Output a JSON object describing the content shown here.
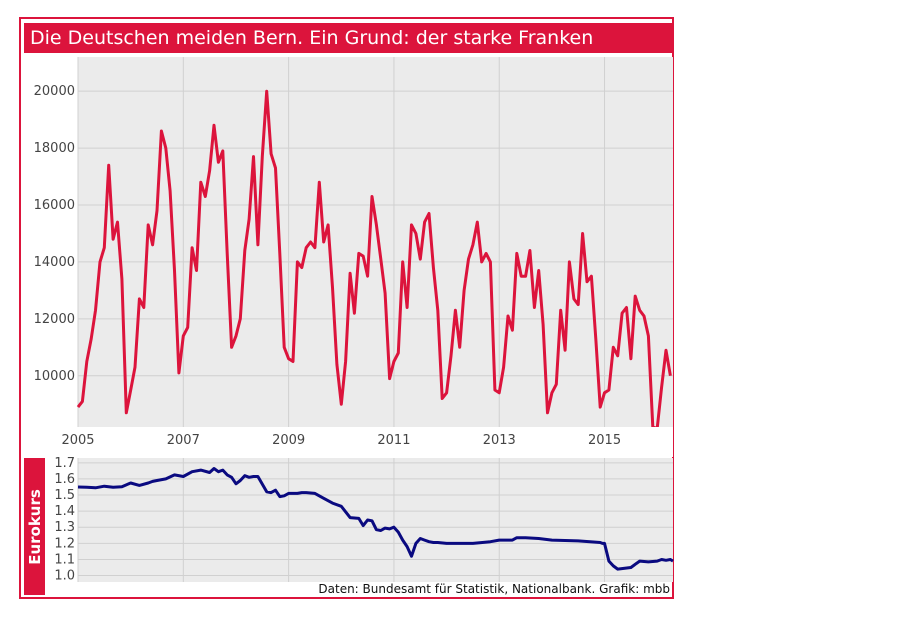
{
  "title": "Die Deutschen meiden Bern. Ein Grund: der starke Franken",
  "source": "Daten: Bundesamt für Statistik, Nationalbank. Grafik: mbb",
  "colors": {
    "accent": "#dc143c",
    "line_top": "#dc143c",
    "line_bottom": "#0a0a80",
    "plot_bg": "#ebebeb",
    "grid": "#d0d0d0"
  },
  "chart_data": [
    {
      "type": "line",
      "title": "",
      "xlabel": "",
      "ylabel": "",
      "xlim": [
        2005.0,
        2016.3
      ],
      "ylim": [
        8200,
        21200
      ],
      "grid": true,
      "x_ticks": [
        2005,
        2007,
        2009,
        2011,
        2013,
        2015
      ],
      "x_tick_labels": [
        "2005",
        "2007",
        "2009",
        "2011",
        "2013",
        "2015"
      ],
      "y_ticks": [
        10000,
        12000,
        14000,
        16000,
        18000,
        20000
      ],
      "y_tick_labels": [
        "10000",
        "12000",
        "14000",
        "16000",
        "18000",
        "20000"
      ],
      "series": [
        {
          "name": "",
          "x": [
            2005.0,
            2005.083,
            2005.167,
            2005.25,
            2005.333,
            2005.417,
            2005.5,
            2005.583,
            2005.667,
            2005.75,
            2005.833,
            2005.917,
            2006.0,
            2006.083,
            2006.167,
            2006.25,
            2006.333,
            2006.417,
            2006.5,
            2006.583,
            2006.667,
            2006.75,
            2006.833,
            2006.917,
            2007.0,
            2007.083,
            2007.167,
            2007.25,
            2007.333,
            2007.417,
            2007.5,
            2007.583,
            2007.667,
            2007.75,
            2007.833,
            2007.917,
            2008.0,
            2008.083,
            2008.167,
            2008.25,
            2008.333,
            2008.417,
            2008.5,
            2008.583,
            2008.667,
            2008.75,
            2008.833,
            2008.917,
            2009.0,
            2009.083,
            2009.167,
            2009.25,
            2009.333,
            2009.417,
            2009.5,
            2009.583,
            2009.667,
            2009.75,
            2009.833,
            2009.917,
            2010.0,
            2010.083,
            2010.167,
            2010.25,
            2010.333,
            2010.417,
            2010.5,
            2010.583,
            2010.667,
            2010.75,
            2010.833,
            2010.917,
            2011.0,
            2011.083,
            2011.167,
            2011.25,
            2011.333,
            2011.417,
            2011.5,
            2011.583,
            2011.667,
            2011.75,
            2011.833,
            2011.917,
            2012.0,
            2012.083,
            2012.167,
            2012.25,
            2012.333,
            2012.417,
            2012.5,
            2012.583,
            2012.667,
            2012.75,
            2012.833,
            2012.917,
            2013.0,
            2013.083,
            2013.167,
            2013.25,
            2013.333,
            2013.417,
            2013.5,
            2013.583,
            2013.667,
            2013.75,
            2013.833,
            2013.917,
            2014.0,
            2014.083,
            2014.167,
            2014.25,
            2014.333,
            2014.417,
            2014.5,
            2014.583,
            2014.667,
            2014.75,
            2014.833,
            2014.917,
            2015.0,
            2015.083,
            2015.167,
            2015.25,
            2015.333,
            2015.417,
            2015.5,
            2015.583,
            2015.667,
            2015.75,
            2015.833,
            2015.917,
            2016.0,
            2016.083,
            2016.167,
            2016.25
          ],
          "y": [
            8900,
            9100,
            10500,
            11300,
            12300,
            14000,
            14500,
            17400,
            14800,
            15400,
            13400,
            8700,
            9500,
            10300,
            12700,
            12400,
            15300,
            14600,
            15800,
            18600,
            18000,
            16500,
            13700,
            10100,
            11400,
            11700,
            14500,
            13700,
            16800,
            16300,
            17200,
            18800,
            17500,
            17900,
            14300,
            11000,
            11400,
            12000,
            14400,
            15500,
            17700,
            14600,
            17700,
            20000,
            17800,
            17300,
            14300,
            11000,
            10600,
            10500,
            14000,
            13800,
            14500,
            14700,
            14500,
            16800,
            14700,
            15300,
            13100,
            10400,
            9000,
            10500,
            13600,
            12200,
            14300,
            14200,
            13500,
            16300,
            15300,
            14100,
            12900,
            9900,
            10500,
            10800,
            14000,
            12400,
            15300,
            15000,
            14100,
            15400,
            15700,
            13800,
            12300,
            9200,
            9400,
            10700,
            12300,
            11000,
            13000,
            14100,
            14600,
            15400,
            14000,
            14300,
            14000,
            9500,
            9400,
            10300,
            12100,
            11600,
            14300,
            13500,
            13500,
            14400,
            12400,
            13700,
            11800,
            8700,
            9400,
            9700,
            12300,
            10900,
            14000,
            12700,
            12500,
            15000,
            13300,
            13500,
            11300,
            8900,
            9400,
            9500,
            11000,
            10700,
            12200,
            12400,
            10600,
            12800,
            12300,
            12100,
            11400,
            8200,
            8150,
            9600,
            10900,
            10000
          ]
        }
      ]
    },
    {
      "type": "line",
      "title": "",
      "xlabel": "",
      "ylabel": "Eurokurs",
      "xlim": [
        2005.0,
        2016.3
      ],
      "ylim": [
        0.96,
        1.73
      ],
      "grid": true,
      "y_ticks": [
        1.0,
        1.1,
        1.2,
        1.3,
        1.4,
        1.5,
        1.6,
        1.7
      ],
      "y_tick_labels": [
        "1.0",
        "1.1",
        "1.2",
        "1.3",
        "1.4",
        "1.5",
        "1.6",
        "1.7"
      ],
      "series": [
        {
          "name": "",
          "x": [
            2005.0,
            2005.167,
            2005.333,
            2005.5,
            2005.667,
            2005.833,
            2006.0,
            2006.167,
            2006.333,
            2006.417,
            2006.5,
            2006.667,
            2006.833,
            2007.0,
            2007.167,
            2007.333,
            2007.5,
            2007.583,
            2007.667,
            2007.75,
            2007.833,
            2007.917,
            2008.0,
            2008.083,
            2008.167,
            2008.25,
            2008.333,
            2008.417,
            2008.583,
            2008.667,
            2008.75,
            2008.833,
            2008.917,
            2009.0,
            2009.083,
            2009.167,
            2009.25,
            2009.333,
            2009.5,
            2009.667,
            2009.833,
            2010.0,
            2010.167,
            2010.333,
            2010.417,
            2010.5,
            2010.583,
            2010.667,
            2010.75,
            2010.833,
            2010.917,
            2011.0,
            2011.083,
            2011.167,
            2011.25,
            2011.333,
            2011.417,
            2011.5,
            2011.583,
            2011.667,
            2011.75,
            2011.833,
            2012.0,
            2012.5,
            2012.833,
            2013.0,
            2013.25,
            2013.333,
            2013.5,
            2013.75,
            2014.0,
            2014.5,
            2014.917,
            2014.96,
            2015.0,
            2015.083,
            2015.167,
            2015.25,
            2015.5,
            2015.583,
            2015.667,
            2015.833,
            2016.0,
            2016.083,
            2016.167,
            2016.25,
            2016.3
          ],
          "y": [
            1.55,
            1.548,
            1.545,
            1.555,
            1.548,
            1.552,
            1.575,
            1.56,
            1.575,
            1.585,
            1.59,
            1.6,
            1.625,
            1.615,
            1.645,
            1.655,
            1.64,
            1.665,
            1.645,
            1.655,
            1.625,
            1.61,
            1.57,
            1.59,
            1.62,
            1.61,
            1.615,
            1.615,
            1.52,
            1.515,
            1.53,
            1.49,
            1.495,
            1.51,
            1.51,
            1.51,
            1.515,
            1.515,
            1.51,
            1.48,
            1.45,
            1.43,
            1.36,
            1.355,
            1.31,
            1.345,
            1.34,
            1.285,
            1.28,
            1.295,
            1.29,
            1.3,
            1.27,
            1.22,
            1.18,
            1.12,
            1.2,
            1.23,
            1.22,
            1.21,
            1.205,
            1.205,
            1.2,
            1.2,
            1.21,
            1.22,
            1.22,
            1.235,
            1.235,
            1.23,
            1.22,
            1.215,
            1.205,
            1.2,
            1.2,
            1.09,
            1.06,
            1.04,
            1.05,
            1.07,
            1.09,
            1.085,
            1.09,
            1.1,
            1.095,
            1.1,
            1.09
          ]
        }
      ]
    }
  ]
}
